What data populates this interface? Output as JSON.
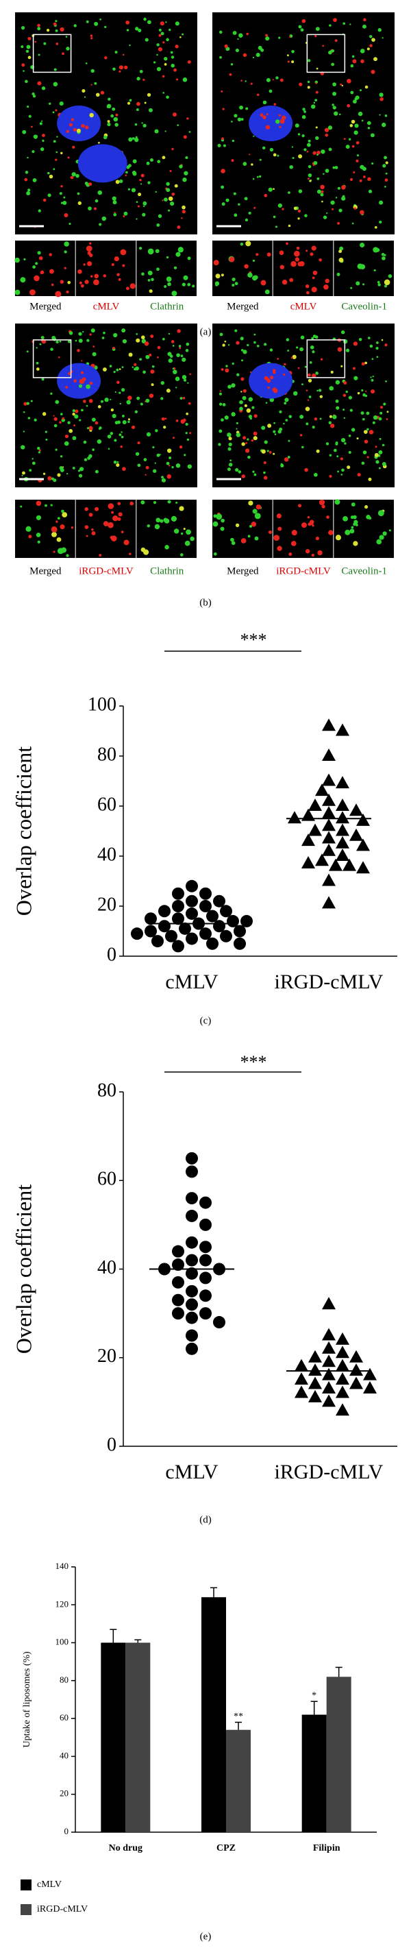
{
  "figures": [
    {
      "label": "(a)",
      "images": [
        {
          "captions": [
            "Merged",
            "cMLV",
            "Clathrin"
          ]
        },
        {
          "captions": [
            "Merged",
            "cMLV",
            "Caveolin-1"
          ]
        }
      ]
    },
    {
      "label": "(b)",
      "images": [
        {
          "captions": [
            "Merged",
            "iRGD-cMLV",
            "Clathrin"
          ]
        },
        {
          "captions": [
            "Merged",
            "iRGD-cMLV",
            "Caveolin-1"
          ]
        }
      ]
    }
  ],
  "chart_data": [
    {
      "type": "strip",
      "panel_label": "(c)",
      "annotation": "***",
      "y_label": "Overlap coefficient",
      "categories": [
        "cMLV",
        "iRGD-cMLV"
      ],
      "series": [
        {
          "name": "cMLV",
          "marker": "circle",
          "color": "#000000",
          "mean": 13,
          "values": [
            28,
            25,
            25,
            22,
            22,
            20,
            20,
            18,
            18,
            17,
            16,
            15,
            15,
            14,
            14,
            13,
            12,
            12,
            11,
            10,
            10,
            9,
            9,
            8,
            8,
            7,
            6,
            5,
            5,
            4
          ]
        },
        {
          "name": "iRGD-cMLV",
          "marker": "triangle",
          "color": "#000000",
          "mean": 55,
          "values": [
            92,
            90,
            80,
            70,
            69,
            66,
            62,
            60,
            60,
            58,
            57,
            56,
            55,
            55,
            54,
            52,
            50,
            50,
            48,
            47,
            46,
            45,
            44,
            42,
            40,
            38,
            37,
            36,
            36,
            35,
            30,
            21
          ]
        }
      ],
      "ylim": [
        0,
        100
      ],
      "yticks": [
        0,
        20,
        40,
        60,
        80,
        100
      ]
    },
    {
      "type": "strip",
      "panel_label": "(d)",
      "annotation": "***",
      "y_label": "Overlap coefficient",
      "categories": [
        "cMLV",
        "iRGD-cMLV"
      ],
      "series": [
        {
          "name": "cMLV",
          "marker": "circle",
          "color": "#000000",
          "mean": 40,
          "values": [
            65,
            62,
            56,
            55,
            52,
            50,
            46,
            45,
            44,
            42,
            42,
            41,
            40,
            40,
            39,
            38,
            37,
            35,
            34,
            33,
            32,
            30,
            30,
            29,
            28,
            25,
            22
          ]
        },
        {
          "name": "iRGD-cMLV",
          "marker": "triangle",
          "color": "#000000",
          "mean": 17,
          "values": [
            32,
            25,
            24,
            22,
            21,
            20,
            20,
            19,
            18,
            18,
            17,
            17,
            16,
            16,
            15,
            15,
            14,
            14,
            13,
            13,
            12,
            12,
            11,
            10,
            8
          ]
        }
      ],
      "ylim": [
        0,
        80
      ],
      "yticks": [
        0,
        20,
        40,
        60,
        80
      ]
    },
    {
      "type": "bar",
      "panel_label": "(e)",
      "y_label": "Uptake of liposomes (%)",
      "categories": [
        "No drug",
        "CPZ",
        "Filipin"
      ],
      "series": [
        {
          "name": "cMLV",
          "color": "#000000",
          "values": [
            100,
            124,
            62
          ],
          "errors": [
            7,
            5,
            7
          ],
          "significance": [
            null,
            null,
            "*"
          ]
        },
        {
          "name": "iRGD-cMLV",
          "color": "#444444",
          "values": [
            100,
            54,
            82
          ],
          "errors": [
            1.5,
            4,
            5
          ],
          "significance": [
            null,
            "**",
            null
          ]
        }
      ],
      "ylim": [
        0,
        140
      ],
      "yticks": [
        0,
        20,
        40,
        60,
        80,
        100,
        120,
        140
      ],
      "legend": "bottom-left"
    }
  ]
}
